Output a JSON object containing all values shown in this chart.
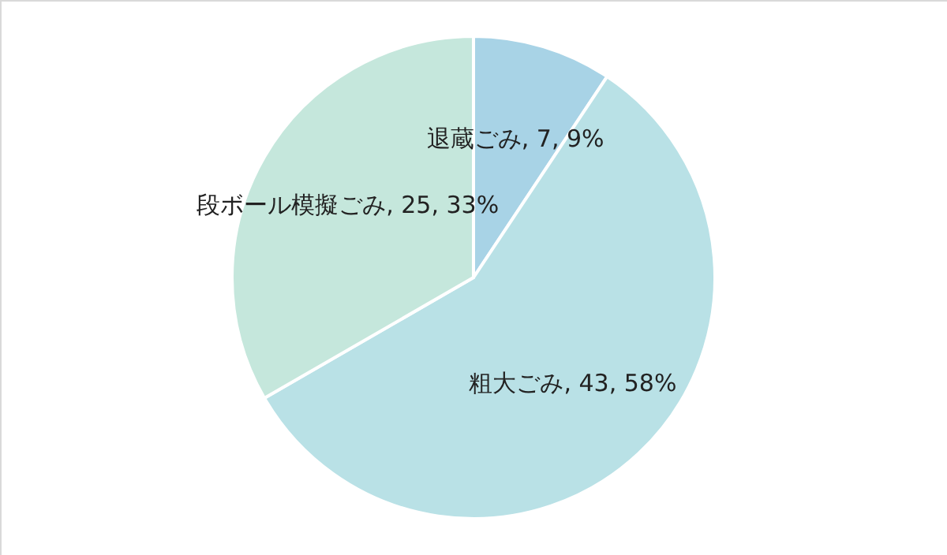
{
  "chart_data": {
    "type": "pie",
    "categories": [
      "退蔵ごみ",
      "粗大ごみ",
      "段ボール模擬ごみ"
    ],
    "values": [
      7,
      43,
      25
    ],
    "colors": [
      "#a8d3e6",
      "#b9e1e6",
      "#c5e7dc"
    ],
    "value_labels": [
      "7, 9%",
      "43, 58%",
      "25, 33%"
    ]
  }
}
